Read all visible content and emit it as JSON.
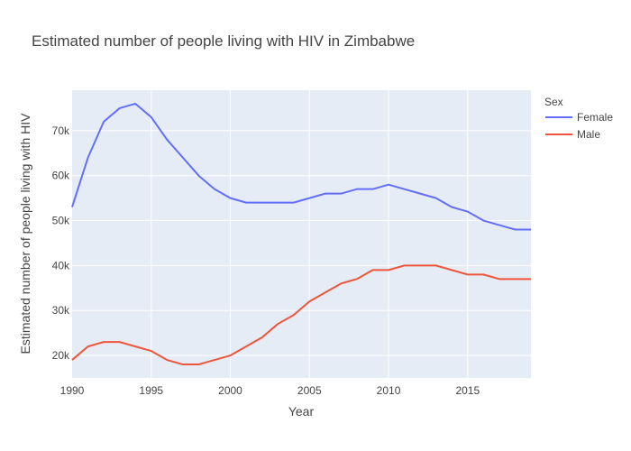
{
  "chart_data": {
    "type": "line",
    "title": "Estimated number of people living with HIV in Zimbabwe",
    "xlabel": "Year",
    "ylabel": "Estimated number of people living with HIV",
    "legend_title": "Sex",
    "legend_position": "right",
    "grid": true,
    "xlim": [
      1990,
      2019
    ],
    "ylim": [
      15000,
      79000
    ],
    "x_ticks": [
      1990,
      1995,
      2000,
      2005,
      2010,
      2015
    ],
    "y_ticks": [
      20000,
      30000,
      40000,
      50000,
      60000,
      70000
    ],
    "y_tick_labels": [
      "20k",
      "30k",
      "40k",
      "50k",
      "60k",
      "70k"
    ],
    "x": [
      1990,
      1991,
      1992,
      1993,
      1994,
      1995,
      1996,
      1997,
      1998,
      1999,
      2000,
      2001,
      2002,
      2003,
      2004,
      2005,
      2006,
      2007,
      2008,
      2009,
      2010,
      2011,
      2012,
      2013,
      2014,
      2015,
      2016,
      2017,
      2018,
      2019
    ],
    "series": [
      {
        "name": "Female",
        "color": "#636efa",
        "values": [
          53000,
          64000,
          72000,
          75000,
          76000,
          73000,
          68000,
          64000,
          60000,
          57000,
          55000,
          54000,
          54000,
          54000,
          54000,
          55000,
          56000,
          56000,
          57000,
          57000,
          58000,
          57000,
          56000,
          55000,
          53000,
          52000,
          50000,
          49000,
          48000,
          48000
        ]
      },
      {
        "name": "Male",
        "color": "#ef553b",
        "values": [
          19000,
          22000,
          23000,
          23000,
          22000,
          21000,
          19000,
          18000,
          18000,
          19000,
          20000,
          22000,
          24000,
          27000,
          29000,
          32000,
          34000,
          36000,
          37000,
          39000,
          39000,
          40000,
          40000,
          40000,
          39000,
          38000,
          38000,
          37000,
          37000,
          37000
        ]
      }
    ]
  }
}
